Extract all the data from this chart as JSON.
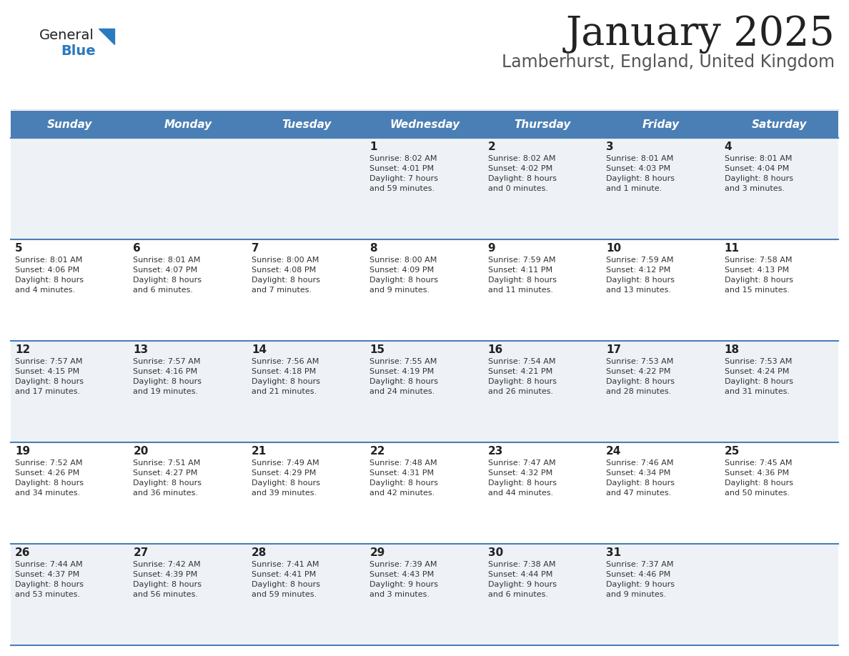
{
  "title": "January 2025",
  "subtitle": "Lamberhurst, England, United Kingdom",
  "header_bg_color": "#4a7fb5",
  "header_text_color": "#ffffff",
  "day_names": [
    "Sunday",
    "Monday",
    "Tuesday",
    "Wednesday",
    "Thursday",
    "Friday",
    "Saturday"
  ],
  "cell_bg_even": "#eef2f7",
  "cell_bg_odd": "#ffffff",
  "cell_border_color": "#4a7fb5",
  "day_num_color": "#222222",
  "text_color": "#333333",
  "title_color": "#222222",
  "subtitle_color": "#555555",
  "logo_general_color": "#222222",
  "logo_blue_color": "#2a7abf",
  "weeks": [
    [
      {
        "day": null,
        "info": null
      },
      {
        "day": null,
        "info": null
      },
      {
        "day": null,
        "info": null
      },
      {
        "day": 1,
        "info": "Sunrise: 8:02 AM\nSunset: 4:01 PM\nDaylight: 7 hours\nand 59 minutes."
      },
      {
        "day": 2,
        "info": "Sunrise: 8:02 AM\nSunset: 4:02 PM\nDaylight: 8 hours\nand 0 minutes."
      },
      {
        "day": 3,
        "info": "Sunrise: 8:01 AM\nSunset: 4:03 PM\nDaylight: 8 hours\nand 1 minute."
      },
      {
        "day": 4,
        "info": "Sunrise: 8:01 AM\nSunset: 4:04 PM\nDaylight: 8 hours\nand 3 minutes."
      }
    ],
    [
      {
        "day": 5,
        "info": "Sunrise: 8:01 AM\nSunset: 4:06 PM\nDaylight: 8 hours\nand 4 minutes."
      },
      {
        "day": 6,
        "info": "Sunrise: 8:01 AM\nSunset: 4:07 PM\nDaylight: 8 hours\nand 6 minutes."
      },
      {
        "day": 7,
        "info": "Sunrise: 8:00 AM\nSunset: 4:08 PM\nDaylight: 8 hours\nand 7 minutes."
      },
      {
        "day": 8,
        "info": "Sunrise: 8:00 AM\nSunset: 4:09 PM\nDaylight: 8 hours\nand 9 minutes."
      },
      {
        "day": 9,
        "info": "Sunrise: 7:59 AM\nSunset: 4:11 PM\nDaylight: 8 hours\nand 11 minutes."
      },
      {
        "day": 10,
        "info": "Sunrise: 7:59 AM\nSunset: 4:12 PM\nDaylight: 8 hours\nand 13 minutes."
      },
      {
        "day": 11,
        "info": "Sunrise: 7:58 AM\nSunset: 4:13 PM\nDaylight: 8 hours\nand 15 minutes."
      }
    ],
    [
      {
        "day": 12,
        "info": "Sunrise: 7:57 AM\nSunset: 4:15 PM\nDaylight: 8 hours\nand 17 minutes."
      },
      {
        "day": 13,
        "info": "Sunrise: 7:57 AM\nSunset: 4:16 PM\nDaylight: 8 hours\nand 19 minutes."
      },
      {
        "day": 14,
        "info": "Sunrise: 7:56 AM\nSunset: 4:18 PM\nDaylight: 8 hours\nand 21 minutes."
      },
      {
        "day": 15,
        "info": "Sunrise: 7:55 AM\nSunset: 4:19 PM\nDaylight: 8 hours\nand 24 minutes."
      },
      {
        "day": 16,
        "info": "Sunrise: 7:54 AM\nSunset: 4:21 PM\nDaylight: 8 hours\nand 26 minutes."
      },
      {
        "day": 17,
        "info": "Sunrise: 7:53 AM\nSunset: 4:22 PM\nDaylight: 8 hours\nand 28 minutes."
      },
      {
        "day": 18,
        "info": "Sunrise: 7:53 AM\nSunset: 4:24 PM\nDaylight: 8 hours\nand 31 minutes."
      }
    ],
    [
      {
        "day": 19,
        "info": "Sunrise: 7:52 AM\nSunset: 4:26 PM\nDaylight: 8 hours\nand 34 minutes."
      },
      {
        "day": 20,
        "info": "Sunrise: 7:51 AM\nSunset: 4:27 PM\nDaylight: 8 hours\nand 36 minutes."
      },
      {
        "day": 21,
        "info": "Sunrise: 7:49 AM\nSunset: 4:29 PM\nDaylight: 8 hours\nand 39 minutes."
      },
      {
        "day": 22,
        "info": "Sunrise: 7:48 AM\nSunset: 4:31 PM\nDaylight: 8 hours\nand 42 minutes."
      },
      {
        "day": 23,
        "info": "Sunrise: 7:47 AM\nSunset: 4:32 PM\nDaylight: 8 hours\nand 44 minutes."
      },
      {
        "day": 24,
        "info": "Sunrise: 7:46 AM\nSunset: 4:34 PM\nDaylight: 8 hours\nand 47 minutes."
      },
      {
        "day": 25,
        "info": "Sunrise: 7:45 AM\nSunset: 4:36 PM\nDaylight: 8 hours\nand 50 minutes."
      }
    ],
    [
      {
        "day": 26,
        "info": "Sunrise: 7:44 AM\nSunset: 4:37 PM\nDaylight: 8 hours\nand 53 minutes."
      },
      {
        "day": 27,
        "info": "Sunrise: 7:42 AM\nSunset: 4:39 PM\nDaylight: 8 hours\nand 56 minutes."
      },
      {
        "day": 28,
        "info": "Sunrise: 7:41 AM\nSunset: 4:41 PM\nDaylight: 8 hours\nand 59 minutes."
      },
      {
        "day": 29,
        "info": "Sunrise: 7:39 AM\nSunset: 4:43 PM\nDaylight: 9 hours\nand 3 minutes."
      },
      {
        "day": 30,
        "info": "Sunrise: 7:38 AM\nSunset: 4:44 PM\nDaylight: 9 hours\nand 6 minutes."
      },
      {
        "day": 31,
        "info": "Sunrise: 7:37 AM\nSunset: 4:46 PM\nDaylight: 9 hours\nand 9 minutes."
      },
      {
        "day": null,
        "info": null
      }
    ]
  ]
}
